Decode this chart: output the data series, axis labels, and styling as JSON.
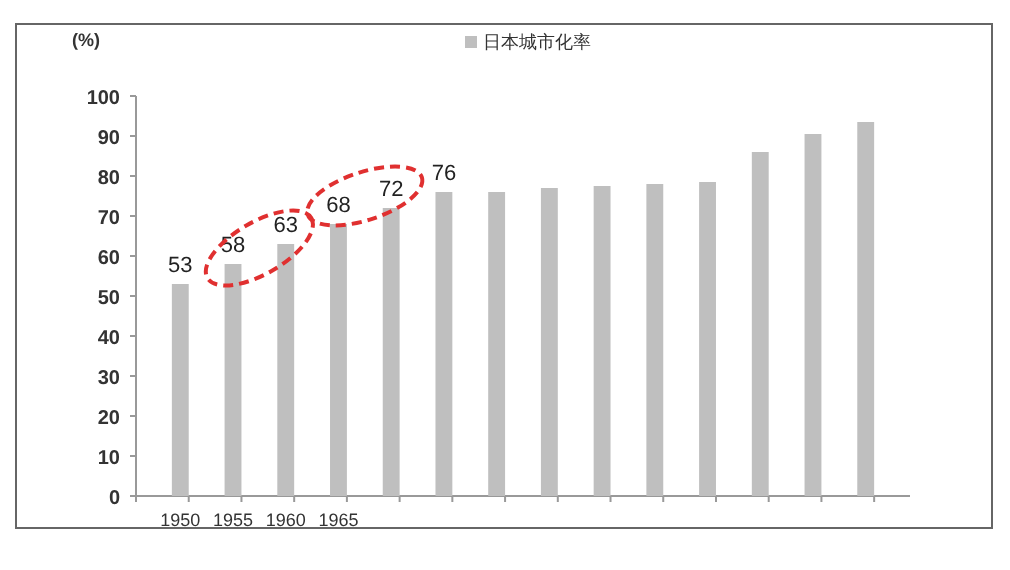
{
  "chart_data": {
    "type": "bar",
    "ylabel": "(%)",
    "categories": [
      "1950",
      "1955",
      "1960",
      "1965",
      null,
      null,
      null,
      null,
      null,
      null,
      null,
      null,
      null,
      null
    ],
    "series": [
      {
        "name": "日本城市化率",
        "color": "#bfbfbf",
        "values": [
          53,
          58,
          63,
          68,
          72,
          76,
          76,
          77,
          77.5,
          78,
          78.5,
          86,
          90.5,
          93.5
        ],
        "value_labels": [
          "53",
          "58",
          "63",
          "68",
          "72",
          "76",
          null,
          null,
          null,
          null,
          null,
          null,
          null,
          null
        ]
      }
    ],
    "ylim": [
      0,
      100
    ],
    "yticks": [
      0,
      10,
      20,
      30,
      40,
      50,
      60,
      70,
      80,
      90,
      100
    ],
    "grid": false,
    "legend": "top"
  }
}
